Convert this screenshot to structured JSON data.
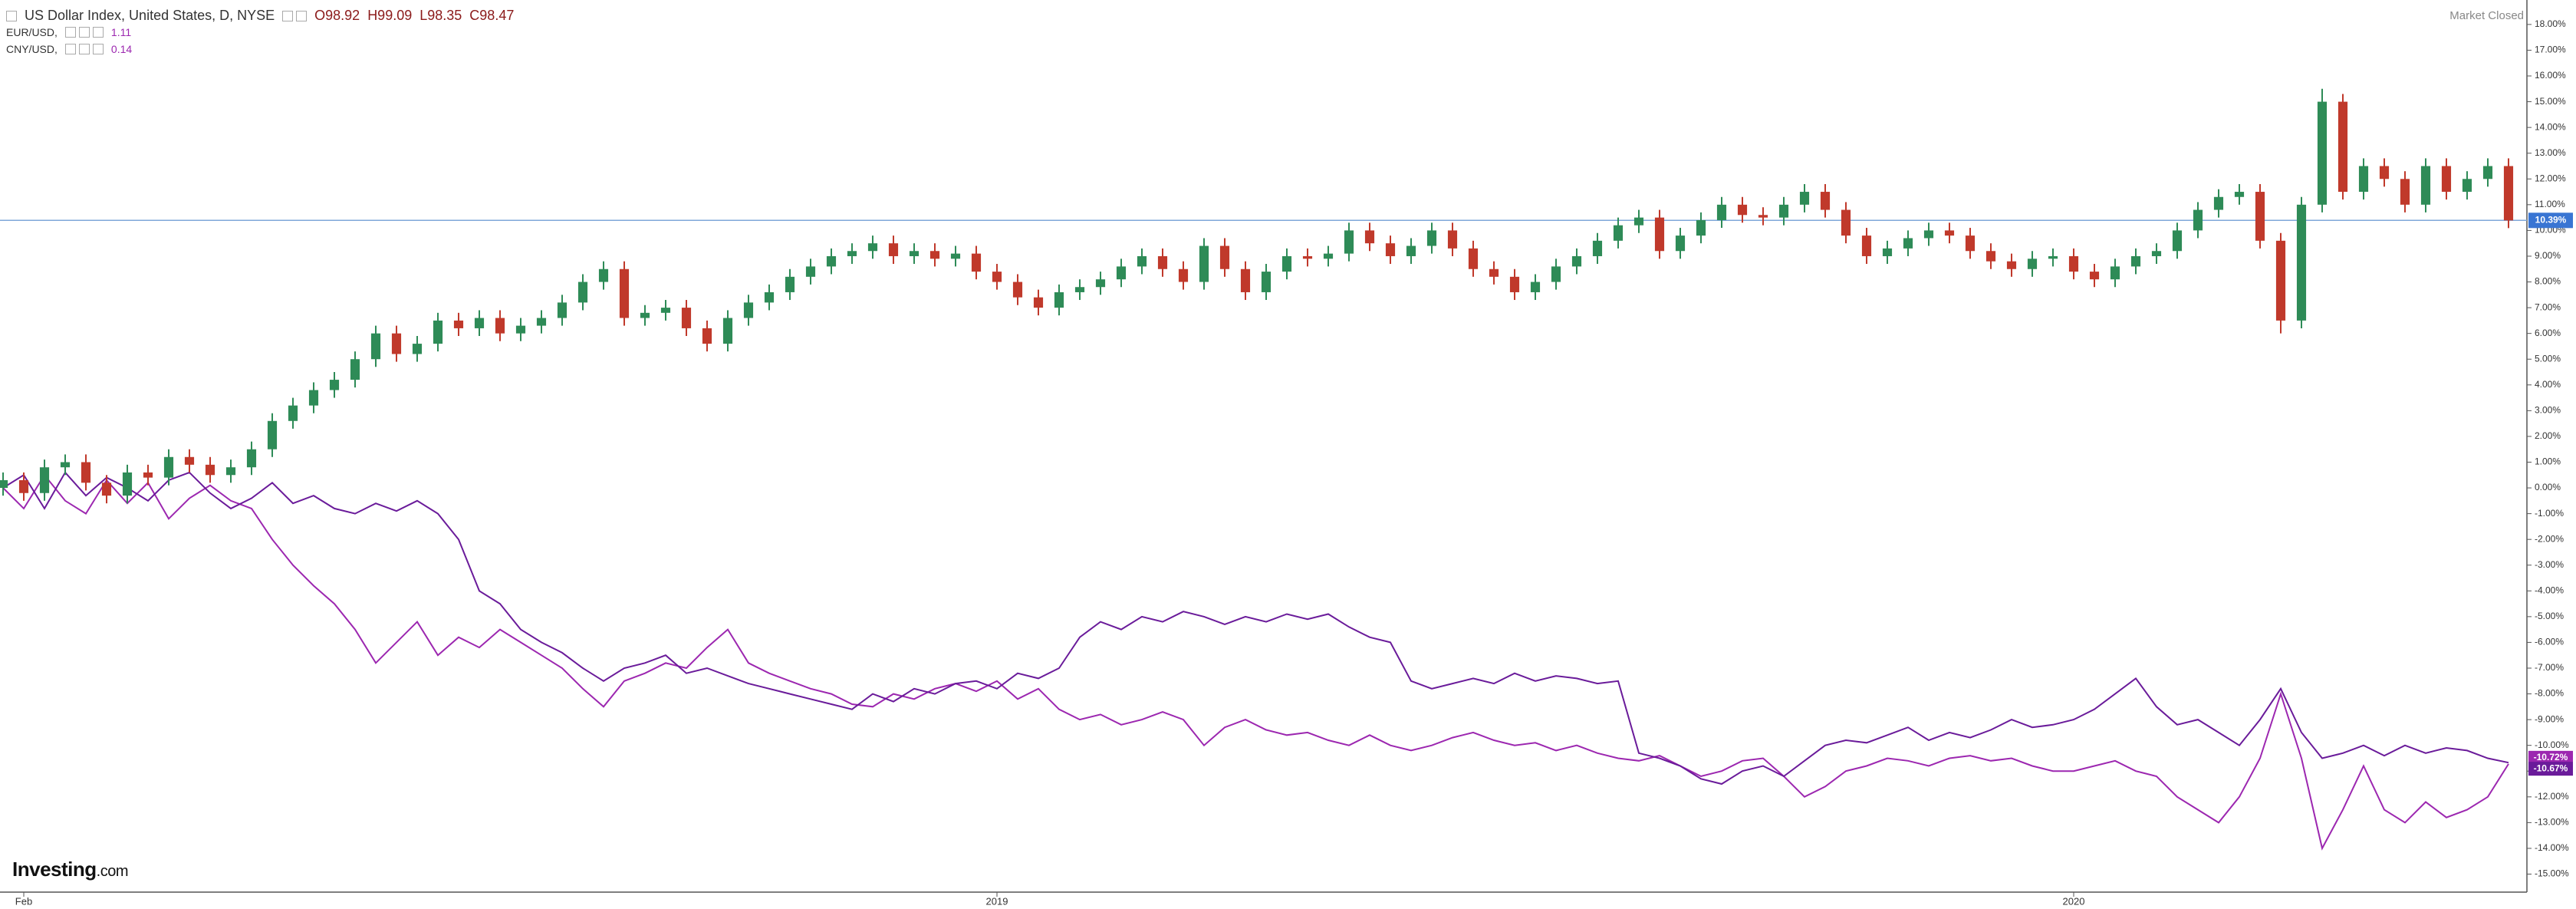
{
  "header": {
    "ohlc": [
      "O98.92",
      "H99.09",
      "L98.35",
      "C98.47"
    ],
    "market_status": "Market Closed"
  },
  "logo": {
    "brand": "Investing",
    "suffix": ".com"
  },
  "chart_data": {
    "type": "candlestick",
    "title": "US Dollar Index, United States, D, NYSE",
    "categories": [
      null,
      "Feb",
      null,
      null,
      null,
      null,
      null,
      null,
      null,
      null,
      null,
      null,
      null,
      null,
      null,
      null,
      null,
      null,
      null,
      null,
      null,
      null,
      null,
      null,
      null,
      null,
      null,
      null,
      null,
      null,
      null,
      null,
      null,
      null,
      null,
      null,
      null,
      null,
      null,
      null,
      null,
      null,
      null,
      null,
      null,
      null,
      null,
      null,
      "2019",
      null,
      null,
      null,
      null,
      null,
      null,
      null,
      null,
      null,
      null,
      null,
      null,
      null,
      null,
      null,
      null,
      null,
      null,
      null,
      null,
      null,
      null,
      null,
      null,
      null,
      null,
      null,
      null,
      null,
      null,
      null,
      null,
      null,
      null,
      null,
      null,
      null,
      null,
      null,
      null,
      null,
      null,
      null,
      null,
      null,
      null,
      null,
      null,
      null,
      null,
      null,
      "2020",
      null,
      null,
      null,
      null,
      null,
      null,
      null,
      null,
      null,
      null,
      null,
      null,
      null,
      null,
      null,
      null,
      null,
      null,
      null,
      null,
      null
    ],
    "ohlc": {
      "up_color": "#2e8b57",
      "down_color": "#c0392b",
      "open": [
        0,
        0.3,
        -0.2,
        0.8,
        1.0,
        0.2,
        -0.3,
        0.6,
        0.4,
        1.2,
        0.9,
        0.5,
        0.8,
        1.5,
        2.6,
        3.2,
        3.8,
        4.2,
        5.0,
        6.0,
        5.2,
        5.6,
        6.5,
        6.2,
        6.6,
        6.0,
        6.3,
        6.6,
        7.2,
        8.0,
        8.5,
        6.6,
        6.8,
        7.0,
        6.2,
        5.6,
        6.6,
        7.2,
        7.6,
        8.2,
        8.6,
        9.0,
        9.2,
        9.5,
        9.0,
        9.2,
        8.9,
        9.1,
        8.4,
        8.0,
        7.4,
        7.0,
        7.6,
        7.8,
        8.1,
        8.6,
        9.0,
        8.5,
        8.0,
        9.4,
        8.5,
        7.6,
        8.4,
        9.0,
        8.9,
        9.1,
        10.0,
        9.5,
        9.0,
        9.4,
        10.0,
        9.3,
        8.5,
        8.2,
        7.6,
        8.0,
        8.6,
        9.0,
        9.6,
        10.2,
        10.5,
        9.2,
        9.8,
        10.4,
        11.0,
        10.6,
        10.5,
        11.0,
        11.5,
        10.8,
        9.8,
        9.0,
        9.3,
        9.7,
        10.0,
        9.8,
        9.2,
        8.8,
        8.5,
        8.9,
        9.0,
        8.4,
        8.1,
        8.6,
        9.0,
        9.2,
        10.0,
        10.8,
        11.3,
        11.5,
        9.6,
        6.5,
        11.0,
        15.0,
        11.5,
        12.5,
        12.0,
        11.0,
        12.5,
        11.5,
        12.0,
        12.5
      ],
      "high": [
        0.6,
        0.6,
        1.1,
        1.3,
        1.3,
        0.5,
        0.9,
        0.9,
        1.5,
        1.5,
        1.2,
        1.1,
        1.8,
        2.9,
        3.5,
        4.1,
        4.5,
        5.3,
        6.3,
        6.3,
        5.9,
        6.8,
        6.8,
        6.9,
        6.9,
        6.6,
        6.9,
        7.5,
        8.3,
        8.8,
        8.8,
        7.1,
        7.3,
        7.3,
        6.5,
        6.9,
        7.5,
        7.9,
        8.5,
        8.9,
        9.3,
        9.5,
        9.8,
        9.8,
        9.5,
        9.5,
        9.4,
        9.4,
        8.7,
        8.3,
        7.7,
        7.9,
        8.1,
        8.4,
        8.9,
        9.3,
        9.3,
        8.8,
        9.7,
        9.7,
        8.8,
        8.7,
        9.3,
        9.3,
        9.4,
        10.3,
        10.3,
        9.8,
        9.7,
        10.3,
        10.3,
        9.6,
        8.8,
        8.5,
        8.3,
        8.9,
        9.3,
        9.9,
        10.5,
        10.8,
        10.8,
        10.1,
        10.7,
        11.3,
        11.3,
        10.9,
        11.3,
        11.8,
        11.8,
        11.1,
        10.1,
        9.6,
        10.0,
        10.3,
        10.3,
        10.1,
        9.5,
        9.1,
        9.2,
        9.3,
        9.3,
        8.7,
        8.9,
        9.3,
        9.5,
        10.3,
        11.1,
        11.6,
        11.8,
        11.8,
        9.9,
        11.3,
        15.5,
        15.3,
        12.8,
        12.8,
        12.3,
        12.8,
        12.8,
        12.3,
        12.8,
        12.8
      ],
      "low": [
        -0.3,
        -0.5,
        -0.5,
        0.5,
        -0.1,
        -0.6,
        -0.6,
        0.1,
        0.1,
        0.6,
        0.2,
        0.2,
        0.5,
        1.2,
        2.3,
        2.9,
        3.5,
        3.9,
        4.7,
        4.9,
        4.9,
        5.3,
        5.9,
        5.9,
        5.7,
        5.7,
        6.0,
        6.3,
        6.9,
        7.7,
        6.3,
        6.3,
        6.5,
        5.9,
        5.3,
        5.3,
        6.3,
        6.9,
        7.3,
        7.9,
        8.3,
        8.7,
        8.9,
        8.7,
        8.7,
        8.6,
        8.6,
        8.1,
        7.7,
        7.1,
        6.7,
        6.7,
        7.3,
        7.5,
        7.8,
        8.3,
        8.2,
        7.7,
        7.7,
        8.2,
        7.3,
        7.3,
        8.1,
        8.6,
        8.6,
        8.8,
        9.2,
        8.7,
        8.7,
        9.1,
        9.0,
        8.2,
        7.9,
        7.3,
        7.3,
        7.7,
        8.3,
        8.7,
        9.3,
        9.9,
        8.9,
        8.9,
        9.5,
        10.1,
        10.3,
        10.2,
        10.2,
        10.7,
        10.5,
        9.5,
        8.7,
        8.7,
        9.0,
        9.4,
        9.5,
        8.9,
        8.5,
        8.2,
        8.2,
        8.6,
        8.1,
        7.8,
        7.8,
        8.3,
        8.7,
        8.9,
        9.7,
        10.5,
        11.0,
        9.3,
        6.0,
        6.2,
        10.7,
        11.2,
        11.2,
        11.7,
        10.7,
        10.7,
        11.2,
        11.2,
        11.7,
        10.09
      ],
      "close": [
        0.3,
        -0.2,
        0.8,
        1.0,
        0.2,
        -0.3,
        0.6,
        0.4,
        1.2,
        0.9,
        0.5,
        0.8,
        1.5,
        2.6,
        3.2,
        3.8,
        4.2,
        5.0,
        6.0,
        5.2,
        5.6,
        6.5,
        6.2,
        6.6,
        6.0,
        6.3,
        6.6,
        7.2,
        8.0,
        8.5,
        6.6,
        6.8,
        7.0,
        6.2,
        5.6,
        6.6,
        7.2,
        7.6,
        8.2,
        8.6,
        9.0,
        9.2,
        9.5,
        9.0,
        9.2,
        8.9,
        9.1,
        8.4,
        8.0,
        7.4,
        7.0,
        7.6,
        7.8,
        8.1,
        8.6,
        9.0,
        8.5,
        8.0,
        9.4,
        8.5,
        7.6,
        8.4,
        9.0,
        8.9,
        9.1,
        10.0,
        9.5,
        9.0,
        9.4,
        10.0,
        9.3,
        8.5,
        8.2,
        7.6,
        8.0,
        8.6,
        9.0,
        9.6,
        10.2,
        10.5,
        9.2,
        9.8,
        10.4,
        11.0,
        10.6,
        10.5,
        11.0,
        11.5,
        10.8,
        9.8,
        9.0,
        9.3,
        9.7,
        10.0,
        9.8,
        9.2,
        8.8,
        8.5,
        8.9,
        9.0,
        8.4,
        8.1,
        8.6,
        9.0,
        9.2,
        10.0,
        10.8,
        11.3,
        11.5,
        9.6,
        6.5,
        11.0,
        15.0,
        11.5,
        12.5,
        12.0,
        11.0,
        12.5,
        11.5,
        12.0,
        12.5,
        10.39
      ]
    },
    "last_price": {
      "value": 10.39,
      "label": "10.39%",
      "color": "#3975d3"
    },
    "series": [
      {
        "name": "EUR/USD,",
        "legend_value": "1.11",
        "color": "#9c27b0",
        "last_label": "-10.72%",
        "values": [
          0.0,
          -0.8,
          0.5,
          -0.5,
          -1.0,
          0.3,
          -0.6,
          0.2,
          -1.2,
          -0.4,
          0.1,
          -0.5,
          -0.8,
          -2.0,
          -3.0,
          -3.8,
          -4.5,
          -5.5,
          -6.8,
          -6.0,
          -5.2,
          -6.5,
          -5.8,
          -6.2,
          -5.5,
          -6.0,
          -6.5,
          -7.0,
          -7.8,
          -8.5,
          -7.5,
          -7.2,
          -6.8,
          -7.0,
          -6.2,
          -5.5,
          -6.8,
          -7.2,
          -7.5,
          -7.8,
          -8.0,
          -8.4,
          -8.5,
          -8.0,
          -8.2,
          -7.8,
          -7.6,
          -7.9,
          -7.5,
          -8.2,
          -7.8,
          -8.6,
          -9.0,
          -8.8,
          -9.2,
          -9.0,
          -8.7,
          -9.0,
          -10.0,
          -9.3,
          -9.0,
          -9.4,
          -9.6,
          -9.5,
          -9.8,
          -10.0,
          -9.6,
          -10.0,
          -10.2,
          -10.0,
          -9.7,
          -9.5,
          -9.8,
          -10.0,
          -9.9,
          -10.2,
          -10.0,
          -10.3,
          -10.5,
          -10.6,
          -10.4,
          -10.8,
          -11.2,
          -11.0,
          -10.6,
          -10.5,
          -11.2,
          -12.0,
          -11.6,
          -11.0,
          -10.8,
          -10.5,
          -10.6,
          -10.8,
          -10.5,
          -10.4,
          -10.6,
          -10.5,
          -10.8,
          -11.0,
          -11.0,
          -10.8,
          -10.6,
          -11.0,
          -11.2,
          -12.0,
          -12.5,
          -13.0,
          -12.0,
          -10.5,
          -8.0,
          -10.5,
          -14.0,
          -12.5,
          -10.8,
          -12.5,
          -13.0,
          -12.2,
          -12.8,
          -12.5,
          -12.0,
          -10.72
        ]
      },
      {
        "name": "CNY/USD,",
        "legend_value": "0.14",
        "color": "#6a1b9a",
        "last_label": "-10.67%",
        "values": [
          0.0,
          0.5,
          -0.8,
          0.6,
          -0.3,
          0.4,
          0.0,
          -0.5,
          0.3,
          0.6,
          -0.2,
          -0.8,
          -0.4,
          0.2,
          -0.6,
          -0.3,
          -0.8,
          -1.0,
          -0.6,
          -0.9,
          -0.5,
          -1.0,
          -2.0,
          -4.0,
          -4.5,
          -5.5,
          -6.0,
          -6.4,
          -7.0,
          -7.5,
          -7.0,
          -6.8,
          -6.5,
          -7.2,
          -7.0,
          -7.3,
          -7.6,
          -7.8,
          -8.0,
          -8.2,
          -8.4,
          -8.6,
          -8.0,
          -8.3,
          -7.8,
          -8.0,
          -7.6,
          -7.5,
          -7.8,
          -7.2,
          -7.4,
          -7.0,
          -5.8,
          -5.2,
          -5.5,
          -5.0,
          -5.2,
          -4.8,
          -5.0,
          -5.3,
          -5.0,
          -5.2,
          -4.9,
          -5.1,
          -4.9,
          -5.4,
          -5.8,
          -6.0,
          -7.5,
          -7.8,
          -7.6,
          -7.4,
          -7.6,
          -7.2,
          -7.5,
          -7.3,
          -7.4,
          -7.6,
          -7.5,
          -10.3,
          -10.5,
          -10.8,
          -11.3,
          -11.5,
          -11.0,
          -10.8,
          -11.2,
          -10.6,
          -10.0,
          -9.8,
          -9.9,
          -9.6,
          -9.3,
          -9.8,
          -9.5,
          -9.7,
          -9.4,
          -9.0,
          -9.3,
          -9.2,
          -9.0,
          -8.6,
          -8.0,
          -7.4,
          -8.5,
          -9.2,
          -9.0,
          -9.5,
          -10.0,
          -9.0,
          -7.8,
          -9.5,
          -10.5,
          -10.3,
          -10.0,
          -10.4,
          -10.0,
          -10.3,
          -10.1,
          -10.2,
          -10.5,
          -10.67
        ]
      }
    ],
    "ylim": [
      -15.7,
      18.95
    ],
    "yticks": [
      {
        "value": 18,
        "label": "18.00%"
      },
      {
        "value": 17,
        "label": "17.00%"
      },
      {
        "value": 16,
        "label": "16.00%"
      },
      {
        "value": 15,
        "label": "15.00%"
      },
      {
        "value": 14,
        "label": "14.00%"
      },
      {
        "value": 13,
        "label": "13.00%"
      },
      {
        "value": 12,
        "label": "12.00%"
      },
      {
        "value": 11,
        "label": "11.00%"
      },
      {
        "value": 10,
        "label": "10.00%"
      },
      {
        "value": 9,
        "label": "9.00%"
      },
      {
        "value": 8,
        "label": "8.00%"
      },
      {
        "value": 7,
        "label": "7.00%"
      },
      {
        "value": 6,
        "label": "6.00%"
      },
      {
        "value": 5,
        "label": "5.00%"
      },
      {
        "value": 4,
        "label": "4.00%"
      },
      {
        "value": 3,
        "label": "3.00%"
      },
      {
        "value": 2,
        "label": "2.00%"
      },
      {
        "value": 1,
        "label": "1.00%"
      },
      {
        "value": 0,
        "label": "0.00%"
      },
      {
        "value": -1,
        "label": "-1.00%"
      },
      {
        "value": -2,
        "label": "-2.00%"
      },
      {
        "value": -3,
        "label": "-3.00%"
      },
      {
        "value": -4,
        "label": "-4.00%"
      },
      {
        "value": -5,
        "label": "-5.00%"
      },
      {
        "value": -6,
        "label": "-6.00%"
      },
      {
        "value": -7,
        "label": "-7.00%"
      },
      {
        "value": -8,
        "label": "-8.00%"
      },
      {
        "value": -9,
        "label": "-9.00%"
      },
      {
        "value": -10,
        "label": "-10.00%"
      },
      {
        "value": -11,
        "label": "-11.00%"
      },
      {
        "value": -12,
        "label": "-12.00%"
      },
      {
        "value": -13,
        "label": "-13.00%"
      },
      {
        "value": -14,
        "label": "-14.00%"
      },
      {
        "value": -15,
        "label": "-15.00%"
      }
    ],
    "grid": false
  }
}
